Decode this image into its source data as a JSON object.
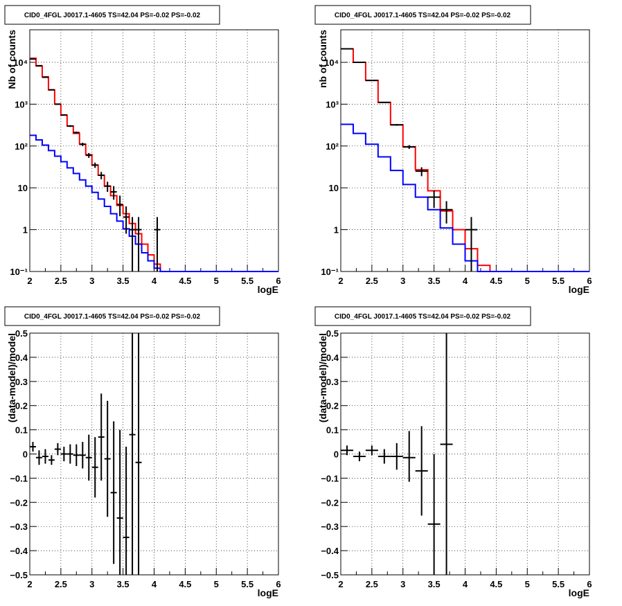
{
  "panels": [
    {
      "id": "counts-left",
      "title": "CID0_4FGL J0017.1-4605 TS=42.04 PS=-0.02 PS=-0.02",
      "xlabel": "logE",
      "ylabel": "Nb of counts",
      "ytick_labels": [
        "10⁻¹",
        "1",
        "10",
        "10²",
        "10³",
        "10⁴"
      ]
    },
    {
      "id": "counts-right",
      "title": "CID0_4FGL J0017.1-4605 TS=42.04 PS=-0.02 PS=-0.02",
      "xlabel": "logE",
      "ylabel": "nb of counts",
      "ytick_labels": [
        "10⁻¹",
        "1",
        "10",
        "10²",
        "10³",
        "10⁴"
      ]
    },
    {
      "id": "resid-left",
      "title": "CID0_4FGL J0017.1-4605 TS=42.04 PS=-0.02 PS=-0.02",
      "xlabel": "logE",
      "ylabel": "(data-model)/model",
      "ytick_labels": [
        "−0.5",
        "−0.4",
        "−0.3",
        "−0.2",
        "−0.1",
        "0",
        "0.1",
        "0.2",
        "0.3",
        "0.4",
        "0.5"
      ]
    },
    {
      "id": "resid-right",
      "title": "CID0_4FGL J0017.1-4605 TS=42.04 PS=-0.02 PS=-0.02",
      "xlabel": "logE",
      "ylabel": "(data-model)/model",
      "ytick_labels": [
        "−0.5",
        "−0.4",
        "−0.3",
        "−0.2",
        "−0.1",
        "0",
        "0.1",
        "0.2",
        "0.3",
        "0.4",
        "0.5"
      ]
    }
  ],
  "xtick_labels": [
    "2",
    "2.5",
    "3",
    "3.5",
    "4",
    "4.5",
    "5",
    "5.5",
    "6"
  ],
  "colors": {
    "data": "#000000",
    "total_model": "#ff0000",
    "source_model": "#0000ff",
    "grid": "#000000"
  },
  "chart_data": [
    {
      "panel": "counts-left",
      "type": "line",
      "title": "CID0_4FGL J0017.1-4605 TS=42.04 PS=-0.02 PS=-0.02",
      "xlabel": "logE",
      "ylabel": "Nb of counts",
      "xlim": [
        2,
        6
      ],
      "ylim": [
        0.1,
        60000
      ],
      "yscale": "log",
      "grid": true,
      "bin_edges": [
        2,
        2.1,
        2.2,
        2.3,
        2.4,
        2.5,
        2.6,
        2.7,
        2.8,
        2.9,
        3,
        3.1,
        3.2,
        3.3,
        3.4,
        3.5,
        3.6,
        3.7,
        3.8,
        3.9,
        4,
        4.1,
        4.2,
        4.3,
        4.4,
        4.5,
        4.6,
        4.7,
        4.8,
        4.9,
        5,
        5.1,
        5.2,
        5.3,
        5.4,
        5.5,
        5.6,
        5.7,
        5.8,
        5.9,
        6
      ],
      "series": [
        {
          "style": "step",
          "color": "#ff0000",
          "values": [
            12500,
            8200,
            4500,
            2200,
            1000,
            550,
            300,
            200,
            110,
            62,
            35,
            20,
            11,
            6.5,
            3.8,
            2.4,
            1.4,
            0.8,
            0.45,
            0.25,
            0.15,
            0.1,
            0.1,
            0.1,
            0.1,
            0.1,
            0.1,
            0.1,
            0.1,
            0.1,
            0.1,
            0.1,
            0.1,
            0.1,
            0.1,
            0.1,
            0.1,
            0.1,
            0.1,
            0.1
          ]
        },
        {
          "style": "step",
          "color": "#0000ff",
          "values": [
            180,
            140,
            105,
            78,
            57,
            42,
            30,
            22,
            15.5,
            11,
            7.8,
            5.4,
            3.6,
            2.4,
            1.6,
            1.05,
            0.7,
            0.45,
            0.28,
            0.18,
            0.12,
            0.1,
            0.1,
            0.1,
            0.1,
            0.1,
            0.1,
            0.1,
            0.1,
            0.1,
            0.1,
            0.1,
            0.1,
            0.1,
            0.1,
            0.1,
            0.1,
            0.1,
            0.1,
            0.1
          ]
        },
        {
          "style": "errorbar",
          "color": "#000000",
          "x": [
            2.05,
            2.15,
            2.25,
            2.35,
            2.45,
            2.55,
            2.65,
            2.75,
            2.85,
            2.95,
            3.05,
            3.15,
            3.25,
            3.35,
            3.45,
            3.55,
            3.65,
            3.75,
            3.85,
            3.95,
            4.05
          ],
          "y": [
            12000,
            8300,
            4400,
            2200,
            1000,
            550,
            300,
            210,
            110,
            60,
            35,
            20,
            11,
            8,
            4,
            2,
            1,
            1,
            0.1,
            0.1,
            1
          ],
          "ylow": [
            11900,
            8200,
            4350,
            2150,
            970,
            530,
            285,
            200,
            100,
            52,
            30,
            16,
            8,
            5.2,
            2.1,
            0.8,
            0.1,
            0.1,
            0.1,
            0.1,
            0.1
          ],
          "yhigh": [
            12100,
            8400,
            4450,
            2250,
            1030,
            570,
            315,
            220,
            120,
            68,
            40,
            24,
            14,
            11,
            6.5,
            3.6,
            2,
            2,
            0.1,
            0.1,
            2
          ]
        }
      ]
    },
    {
      "panel": "counts-right",
      "type": "line",
      "title": "CID0_4FGL J0017.1-4605 TS=42.04 PS=-0.02 PS=-0.02",
      "xlabel": "logE",
      "ylabel": "nb of counts",
      "xlim": [
        2,
        6
      ],
      "ylim": [
        0.1,
        60000
      ],
      "yscale": "log",
      "grid": true,
      "bin_edges": [
        2,
        2.2,
        2.4,
        2.6,
        2.8,
        3,
        3.2,
        3.4,
        3.6,
        3.8,
        4,
        4.2,
        4.4,
        4.6,
        4.8,
        5,
        5.2,
        5.4,
        5.6,
        5.8,
        6
      ],
      "series": [
        {
          "style": "step",
          "color": "#ff0000",
          "values": [
            21000,
            10000,
            3700,
            1100,
            320,
            95,
            27,
            8.5,
            2.8,
            1,
            0.35,
            0.14,
            0.1,
            0.1,
            0.1,
            0.1,
            0.1,
            0.1,
            0.1,
            0.1
          ]
        },
        {
          "style": "step",
          "color": "#0000ff",
          "values": [
            330,
            200,
            110,
            55,
            26,
            12,
            6,
            3,
            1.1,
            0.45,
            0.18,
            0.1,
            0.1,
            0.1,
            0.1,
            0.1,
            0.1,
            0.1,
            0.1,
            0.1
          ]
        },
        {
          "style": "errorbar",
          "color": "#000000",
          "x": [
            2.1,
            2.3,
            2.5,
            2.7,
            2.9,
            3.1,
            3.3,
            3.5,
            3.7,
            3.9,
            4.1
          ],
          "y": [
            21000,
            10000,
            3700,
            1100,
            320,
            95,
            25,
            6,
            3,
            0.1,
            1
          ],
          "ylow": [
            20800,
            9900,
            3650,
            1080,
            305,
            85,
            19,
            3.3,
            1.4,
            0.1,
            0.1
          ],
          "yhigh": [
            21200,
            10100,
            3750,
            1120,
            335,
            105,
            31,
            8.7,
            4.8,
            0.1,
            2
          ]
        }
      ]
    },
    {
      "panel": "resid-left",
      "type": "scatter",
      "title": "CID0_4FGL J0017.1-4605 TS=42.04 PS=-0.02 PS=-0.02",
      "xlabel": "logE",
      "ylabel": "(data-model)/model",
      "xlim": [
        2,
        6
      ],
      "ylim": [
        -0.5,
        0.5
      ],
      "grid": true,
      "series": [
        {
          "style": "errorbar",
          "color": "#000000",
          "xhalf": 0.05,
          "x": [
            2.05,
            2.15,
            2.25,
            2.35,
            2.45,
            2.55,
            2.65,
            2.75,
            2.85,
            2.95,
            3.05,
            3.15,
            3.25,
            3.35,
            3.45,
            3.55,
            3.65,
            3.75
          ],
          "y": [
            0.03,
            -0.015,
            -0.01,
            -0.025,
            0.02,
            0.0,
            0.0,
            -0.005,
            -0.005,
            -0.015,
            -0.055,
            0.07,
            -0.02,
            -0.16,
            -0.265,
            -0.345,
            0.08,
            -0.035
          ],
          "ylow": [
            0.01,
            -0.045,
            -0.04,
            -0.045,
            -0.005,
            -0.03,
            -0.04,
            -0.05,
            -0.06,
            -0.11,
            -0.18,
            -0.11,
            -0.26,
            -0.455,
            -0.5,
            -0.5,
            -0.5,
            -0.5
          ],
          "yhigh": [
            0.05,
            0.015,
            0.02,
            -0.005,
            0.045,
            0.03,
            0.04,
            0.04,
            0.05,
            0.08,
            0.07,
            0.25,
            0.22,
            0.135,
            0.1,
            0.03,
            0.5,
            0.5
          ]
        }
      ]
    },
    {
      "panel": "resid-right",
      "type": "scatter",
      "title": "CID0_4FGL J0017.1-4605 TS=42.04 PS=-0.02 PS=-0.02",
      "xlabel": "logE",
      "ylabel": "(data-model)/model",
      "xlim": [
        2,
        6
      ],
      "ylim": [
        -0.5,
        0.5
      ],
      "grid": true,
      "series": [
        {
          "style": "errorbar",
          "color": "#000000",
          "xhalf": 0.1,
          "x": [
            2.1,
            2.3,
            2.5,
            2.7,
            2.9,
            3.1,
            3.3,
            3.5,
            3.7
          ],
          "y": [
            0.015,
            -0.01,
            0.015,
            -0.01,
            -0.01,
            -0.015,
            -0.07,
            -0.29,
            0.04
          ],
          "ylow": [
            -0.005,
            -0.03,
            -0.005,
            -0.04,
            -0.065,
            -0.115,
            -0.255,
            -0.5,
            -0.5
          ],
          "yhigh": [
            0.035,
            0.01,
            0.035,
            0.02,
            0.045,
            0.095,
            0.115,
            0.0,
            0.5
          ]
        }
      ]
    }
  ]
}
